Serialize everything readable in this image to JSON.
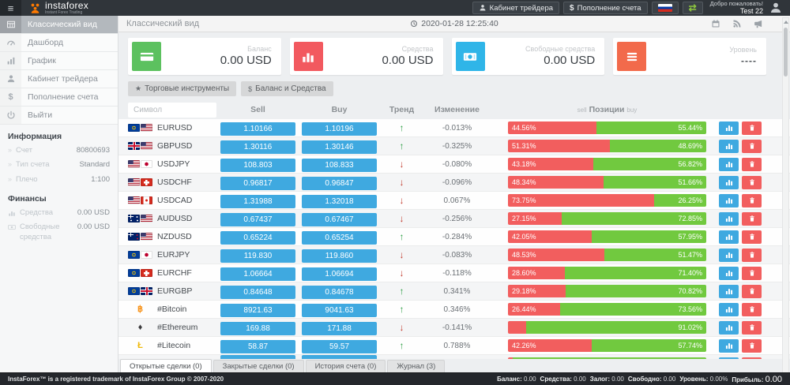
{
  "colors": {
    "topbar_bg": "#30353a",
    "footer_bg": "#24272c",
    "accent_blue": "#3fa9e0",
    "sell_red": "#f25e5e",
    "buy_green": "#71c93f",
    "up_green": "#2e9e44",
    "down_red": "#c23b2e"
  },
  "icons": {
    "menu-icon": "≡",
    "star-icon": "★",
    "dollar-icon": "$",
    "swap-icon": "⇄",
    "up-arrow-icon": "↑",
    "down-arrow-icon": "↓",
    "bullet-icon": "»",
    "btc-icon": "฿",
    "eth-icon": "♦",
    "ltc-icon": "Ł"
  },
  "header": {
    "logo_text": "instaforex",
    "logo_subtitle": "Instant Forex Trading",
    "cabinet_button": "Кабинет трейдера",
    "deposit_button": "Пополнение счета",
    "welcome_line1": "Добро пожаловать!",
    "welcome_line2": "Test 22"
  },
  "subheader": {
    "title": "Классический вид",
    "datetime": "2020-01-28 12:25:40"
  },
  "sidebar": {
    "items": [
      {
        "label": "Классический вид"
      },
      {
        "label": "Дашборд"
      },
      {
        "label": "График"
      },
      {
        "label": "Кабинет трейдера"
      },
      {
        "label": "Пополнение счета"
      },
      {
        "label": "Выйти"
      }
    ],
    "info_title": "Информация",
    "info_rows": [
      {
        "label": "Счет",
        "value": "80800693"
      },
      {
        "label": "Тип счета",
        "value": "Standard"
      },
      {
        "label": "Плечо",
        "value": "1:100"
      }
    ],
    "finance_title": "Финансы",
    "finance_rows": [
      {
        "label": "Средства",
        "value": "0.00 USD"
      },
      {
        "label": "Свободные средства",
        "value": "0.00 USD"
      }
    ]
  },
  "cards": [
    {
      "label": "Баланс",
      "value": "0.00 USD",
      "color": "#5cc15f"
    },
    {
      "label": "Средства",
      "value": "0.00 USD",
      "color": "#f2595f"
    },
    {
      "label": "Свободные средства",
      "value": "0.00 USD",
      "color": "#2fb5e8"
    },
    {
      "label": "Уровень",
      "value": "----",
      "color": "#f26a4b"
    }
  ],
  "toolbar": {
    "instruments_button": "Торговые инструменты",
    "balance_button": "Баланс и Средства"
  },
  "table": {
    "symbol_filter_placeholder": "Символ",
    "headers": {
      "sell": "Sell",
      "buy": "Buy",
      "trend": "Тренд",
      "change": "Изменение",
      "positions": "Позиции",
      "positions_sell": "sell",
      "positions_buy": "buy"
    },
    "rows": [
      {
        "symbol": "EURUSD",
        "flags": [
          "eu",
          "us"
        ],
        "sell": "1.10166",
        "buy": "1.10196",
        "trend": "up",
        "change": "-0.013%",
        "positions": {
          "sell_pct": 44.56,
          "buy_pct": 55.44,
          "sell_label": "44.56%",
          "buy_label": "55.44%"
        }
      },
      {
        "symbol": "GBPUSD",
        "flags": [
          "gb",
          "us"
        ],
        "sell": "1.30116",
        "buy": "1.30146",
        "trend": "up",
        "change": "-0.325%",
        "positions": {
          "sell_pct": 51.31,
          "buy_pct": 48.69,
          "sell_label": "51.31%",
          "buy_label": "48.69%"
        }
      },
      {
        "symbol": "USDJPY",
        "flags": [
          "us",
          "jp"
        ],
        "sell": "108.803",
        "buy": "108.833",
        "trend": "down",
        "change": "-0.080%",
        "positions": {
          "sell_pct": 43.18,
          "buy_pct": 56.82,
          "sell_label": "43.18%",
          "buy_label": "56.82%"
        }
      },
      {
        "symbol": "USDCHF",
        "flags": [
          "us",
          "ch"
        ],
        "sell": "0.96817",
        "buy": "0.96847",
        "trend": "down",
        "change": "-0.096%",
        "positions": {
          "sell_pct": 48.34,
          "buy_pct": 51.66,
          "sell_label": "48.34%",
          "buy_label": "51.66%"
        }
      },
      {
        "symbol": "USDCAD",
        "flags": [
          "us",
          "ca"
        ],
        "sell": "1.31988",
        "buy": "1.32018",
        "trend": "down",
        "change": "0.067%",
        "positions": {
          "sell_pct": 73.75,
          "buy_pct": 26.25,
          "sell_label": "73.75%",
          "buy_label": "26.25%"
        }
      },
      {
        "symbol": "AUDUSD",
        "flags": [
          "au",
          "us"
        ],
        "sell": "0.67437",
        "buy": "0.67467",
        "trend": "down",
        "change": "-0.256%",
        "positions": {
          "sell_pct": 27.15,
          "buy_pct": 72.85,
          "sell_label": "27.15%",
          "buy_label": "72.85%"
        }
      },
      {
        "symbol": "NZDUSD",
        "flags": [
          "nz",
          "us"
        ],
        "sell": "0.65224",
        "buy": "0.65254",
        "trend": "up",
        "change": "-0.284%",
        "positions": {
          "sell_pct": 42.05,
          "buy_pct": 57.95,
          "sell_label": "42.05%",
          "buy_label": "57.95%"
        }
      },
      {
        "symbol": "EURJPY",
        "flags": [
          "eu",
          "jp"
        ],
        "sell": "119.830",
        "buy": "119.860",
        "trend": "down",
        "change": "-0.083%",
        "positions": {
          "sell_pct": 48.53,
          "buy_pct": 51.47,
          "sell_label": "48.53%",
          "buy_label": "51.47%"
        }
      },
      {
        "symbol": "EURCHF",
        "flags": [
          "eu",
          "ch"
        ],
        "sell": "1.06664",
        "buy": "1.06694",
        "trend": "down",
        "change": "-0.118%",
        "positions": {
          "sell_pct": 28.6,
          "buy_pct": 71.4,
          "sell_label": "28.60%",
          "buy_label": "71.40%"
        }
      },
      {
        "symbol": "EURGBP",
        "flags": [
          "eu",
          "gb"
        ],
        "sell": "0.84648",
        "buy": "0.84678",
        "trend": "up",
        "change": "0.341%",
        "positions": {
          "sell_pct": 29.18,
          "buy_pct": 70.82,
          "sell_label": "29.18%",
          "buy_label": "70.82%"
        }
      },
      {
        "symbol": "#Bitcoin",
        "crypto": "btc",
        "sell": "8921.63",
        "buy": "9041.63",
        "trend": "up",
        "change": "0.346%",
        "positions": {
          "sell_pct": 26.44,
          "buy_pct": 73.56,
          "sell_label": "26.44%",
          "buy_label": "73.56%"
        }
      },
      {
        "symbol": "#Ethereum",
        "crypto": "eth",
        "sell": "169.88",
        "buy": "171.88",
        "trend": "down",
        "change": "-0.141%",
        "positions": {
          "sell_pct": 8.98,
          "buy_pct": 91.02,
          "sell_label": "",
          "buy_label": "91.02%"
        }
      },
      {
        "symbol": "#Litecoin",
        "crypto": "ltc",
        "sell": "58.87",
        "buy": "59.57",
        "trend": "up",
        "change": "0.788%",
        "positions": {
          "sell_pct": 42.26,
          "buy_pct": 57.74,
          "sell_label": "",
          "buy_label": ""
        }
      }
    ],
    "partial_row": {
      "sell_pct": 2.5,
      "buy_pct": 97.5,
      "sell_label": "",
      "buy_label": ""
    }
  },
  "tabs": [
    {
      "label": "Открытые сделки (0)",
      "active": true
    },
    {
      "label": "Закрытые сделки (0)",
      "active": false
    },
    {
      "label": "История счета (0)",
      "active": false
    },
    {
      "label": "Журнал (3)",
      "active": false
    }
  ],
  "footer": {
    "copyright": "InstaForex™ is a registered trademark of InstaForex Group © 2007-2020",
    "summary": [
      {
        "label": "Баланс:",
        "value": "0.00"
      },
      {
        "label": "Средства:",
        "value": "0.00"
      },
      {
        "label": "Залог:",
        "value": "0.00"
      },
      {
        "label": "Свободно:",
        "value": "0.00"
      },
      {
        "label": "Уровень:",
        "value": "0.00%"
      },
      {
        "label": "Прибыль:",
        "value": "0.00",
        "big": true
      }
    ]
  }
}
